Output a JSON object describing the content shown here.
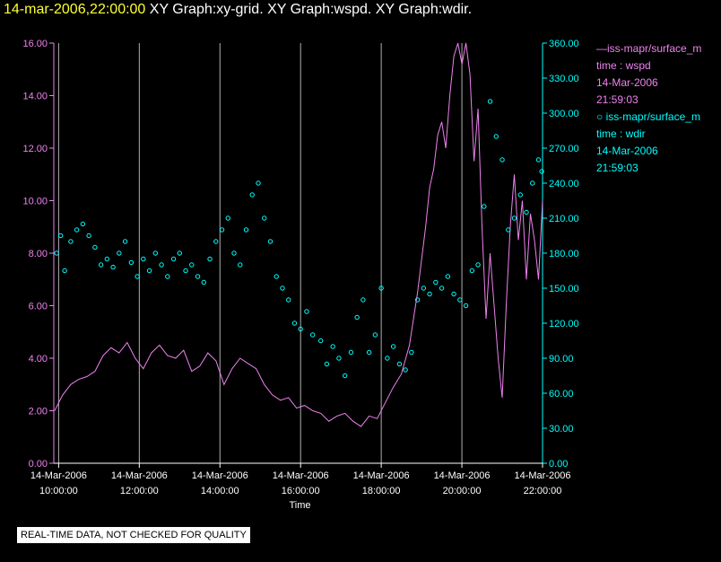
{
  "header": {
    "timestamp": "14-mar-2006,22:00:00",
    "graphs": "XY Graph:xy-grid.  XY Graph:wspd.  XY Graph:wdir."
  },
  "colors": {
    "wspd": "#ee82ee",
    "wdir": "#00ffff",
    "grid": "#b0b0b0",
    "axis_text": "#ffffff"
  },
  "legend": {
    "wspd": {
      "label": "—iss-mapr/surface_m",
      "line1": "time : wspd",
      "line2": "14-Mar-2006",
      "line3": "21:59:03"
    },
    "wdir": {
      "label": "○ iss-mapr/surface_m",
      "line1": "time : wdir",
      "line2": "14-Mar-2006",
      "line3": "21:59:03"
    }
  },
  "notice": "REAL-TIME DATA, NOT CHECKED FOR QUALITY",
  "chart_data": {
    "type": "line",
    "xlabel": "Time",
    "x_range_hours": [
      9.88,
      22.0
    ],
    "x_ticks": [
      {
        "hour": 10,
        "date": "14-Mar-2006",
        "time": "10:00:00"
      },
      {
        "hour": 12,
        "date": "14-Mar-2006",
        "time": "12:00:00"
      },
      {
        "hour": 14,
        "date": "14-Mar-2006",
        "time": "14:00:00"
      },
      {
        "hour": 16,
        "date": "14-Mar-2006",
        "time": "16:00:00"
      },
      {
        "hour": 18,
        "date": "14-Mar-2006",
        "time": "18:00:00"
      },
      {
        "hour": 20,
        "date": "14-Mar-2006",
        "time": "20:00:00"
      },
      {
        "hour": 22,
        "date": "14-Mar-2006",
        "time": "22:00:00"
      }
    ],
    "y_left": {
      "ylim": [
        0,
        16
      ],
      "ticks": [
        "0.00",
        "2.00",
        "4.00",
        "6.00",
        "8.00",
        "10.00",
        "12.00",
        "14.00",
        "16.00"
      ]
    },
    "y_right": {
      "ylim": [
        0,
        360
      ],
      "ticks": [
        "0.00",
        "30.00",
        "60.00",
        "90.00",
        "120.00",
        "150.00",
        "180.00",
        "210.00",
        "240.00",
        "270.00",
        "300.00",
        "330.00",
        "360.00"
      ]
    },
    "grid": "vertical",
    "series": [
      {
        "name": "wspd",
        "axis": "left",
        "style": "line",
        "x": [
          9.9,
          10.1,
          10.3,
          10.5,
          10.7,
          10.9,
          11.1,
          11.3,
          11.5,
          11.7,
          11.9,
          12.1,
          12.3,
          12.5,
          12.7,
          12.9,
          13.1,
          13.3,
          13.5,
          13.7,
          13.9,
          14.1,
          14.3,
          14.5,
          14.7,
          14.9,
          15.1,
          15.3,
          15.5,
          15.7,
          15.9,
          16.1,
          16.3,
          16.5,
          16.7,
          16.9,
          17.1,
          17.3,
          17.5,
          17.7,
          17.9,
          18.1,
          18.3,
          18.5,
          18.7,
          18.9,
          19.1,
          19.2,
          19.3,
          19.4,
          19.5,
          19.6,
          19.7,
          19.8,
          19.9,
          20.0,
          20.1,
          20.2,
          20.3,
          20.4,
          20.5,
          20.6,
          20.7,
          20.8,
          20.9,
          21.0,
          21.1,
          21.2,
          21.3,
          21.4,
          21.5,
          21.6,
          21.7,
          21.8,
          21.9,
          22.0
        ],
        "values": [
          2.0,
          2.6,
          3.0,
          3.2,
          3.3,
          3.5,
          4.1,
          4.4,
          4.2,
          4.6,
          4.0,
          3.6,
          4.2,
          4.5,
          4.1,
          4.0,
          4.3,
          3.5,
          3.7,
          4.2,
          3.9,
          3.0,
          3.6,
          4.0,
          3.8,
          3.6,
          3.0,
          2.6,
          2.4,
          2.5,
          2.1,
          2.2,
          2.0,
          1.9,
          1.6,
          1.8,
          1.9,
          1.6,
          1.4,
          1.8,
          1.7,
          2.3,
          2.9,
          3.4,
          4.5,
          6.5,
          9.0,
          10.5,
          11.2,
          12.5,
          13.0,
          12.0,
          14.0,
          15.5,
          16.0,
          15.2,
          16.0,
          14.8,
          11.5,
          13.5,
          9.0,
          5.5,
          8.0,
          6.0,
          4.0,
          2.5,
          6.0,
          9.0,
          11.0,
          8.5,
          10.0,
          7.0,
          9.5,
          8.5,
          7.0,
          10.0
        ]
      },
      {
        "name": "wdir",
        "axis": "right",
        "style": "scatter",
        "x": [
          9.95,
          10.05,
          10.15,
          10.3,
          10.45,
          10.6,
          10.75,
          10.9,
          11.05,
          11.2,
          11.35,
          11.5,
          11.65,
          11.8,
          11.95,
          12.1,
          12.25,
          12.4,
          12.55,
          12.7,
          12.85,
          13.0,
          13.15,
          13.3,
          13.45,
          13.6,
          13.75,
          13.9,
          14.05,
          14.2,
          14.35,
          14.5,
          14.65,
          14.8,
          14.95,
          15.1,
          15.25,
          15.4,
          15.55,
          15.7,
          15.85,
          16.0,
          16.15,
          16.3,
          16.5,
          16.65,
          16.8,
          16.95,
          17.1,
          17.25,
          17.4,
          17.55,
          17.7,
          17.85,
          18.0,
          18.15,
          18.3,
          18.45,
          18.6,
          18.75,
          18.9,
          19.05,
          19.2,
          19.35,
          19.5,
          19.65,
          19.8,
          19.95,
          20.1,
          20.25,
          20.4,
          20.55,
          20.7,
          20.85,
          21.0,
          21.15,
          21.3,
          21.45,
          21.6,
          21.75,
          21.9,
          21.98
        ],
        "values": [
          180,
          195,
          165,
          190,
          200,
          205,
          195,
          185,
          170,
          175,
          168,
          180,
          190,
          172,
          160,
          175,
          165,
          180,
          170,
          160,
          175,
          180,
          165,
          170,
          160,
          155,
          175,
          190,
          200,
          210,
          180,
          170,
          200,
          230,
          240,
          210,
          190,
          160,
          150,
          140,
          120,
          115,
          130,
          110,
          105,
          85,
          100,
          90,
          75,
          95,
          125,
          140,
          95,
          110,
          150,
          90,
          100,
          85,
          80,
          95,
          140,
          150,
          145,
          155,
          150,
          160,
          145,
          140,
          135,
          165,
          170,
          220,
          310,
          280,
          260,
          200,
          210,
          230,
          215,
          240,
          260,
          250
        ]
      }
    ]
  }
}
